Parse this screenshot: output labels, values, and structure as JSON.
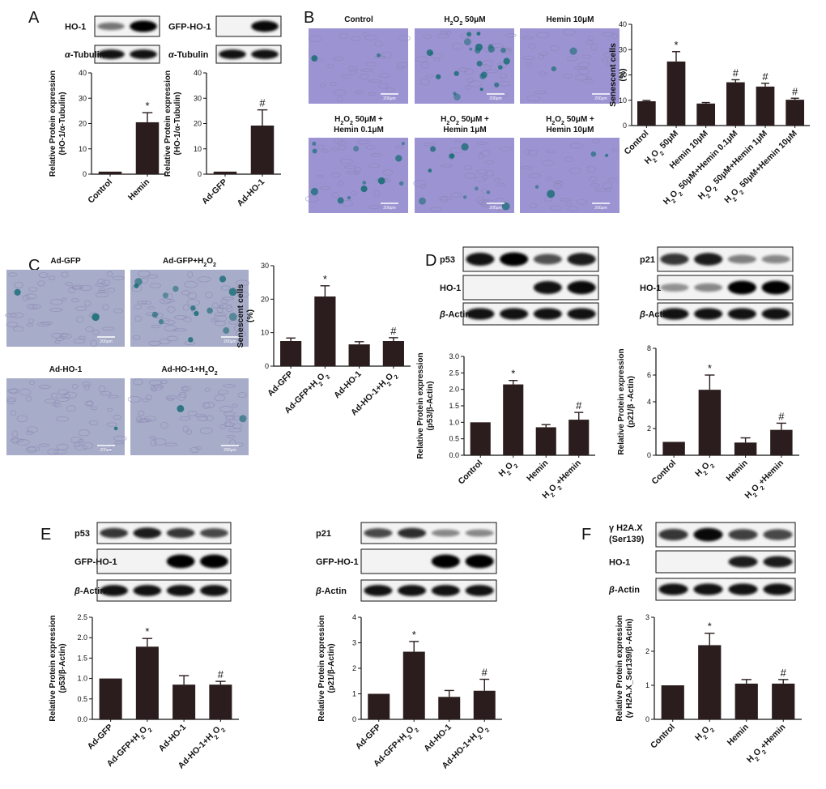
{
  "panel_labels": [
    "A",
    "B",
    "C",
    "D",
    "E",
    "F"
  ],
  "blots": {
    "A_left": [
      "HO-1",
      "α-Tubulin"
    ],
    "A_right": [
      "GFP-HO-1",
      "α-Tubulin"
    ],
    "D_left": [
      "p53",
      "HO-1",
      "β-Actin"
    ],
    "D_right": [
      "p21",
      "HO-1",
      "β-Actin"
    ],
    "E_left": [
      "p53",
      "GFP-HO-1",
      "β-Actin"
    ],
    "E_right": [
      "p21",
      "GFP-HO-1",
      "β-Actin"
    ],
    "F": [
      "γ H2A.X (Ser139)",
      "HO-1",
      "β-Actin"
    ]
  },
  "micrographs": {
    "B": [
      "Control",
      "H2O2 50μM",
      "Hemin 10μM",
      "H2O2 50μM + Hemin 0.1μM",
      "H2O2 50μM + Hemin 1μM",
      "H2O2 50μM + Hemin 10μM"
    ],
    "C": [
      "Ad-GFP",
      "Ad-GFP+H2O2",
      "Ad-HO-1",
      "Ad-HO-1+H2O2"
    ],
    "B_scale": "200μm",
    "C_scale": "200μm"
  },
  "chart_data": [
    {
      "id": "A1",
      "type": "bar",
      "categories": [
        "Control",
        "Hemin"
      ],
      "values": [
        1,
        20.5
      ],
      "errors": [
        0,
        3.8
      ],
      "ylabel": "Relative Protein expression (HO-1/α-Tubulin)",
      "ylim": [
        0,
        40
      ],
      "yticks": [
        0,
        10,
        20,
        30,
        40
      ],
      "annotations": [
        "",
        "*"
      ]
    },
    {
      "id": "A2",
      "type": "bar",
      "categories": [
        "Ad-GFP",
        "Ad-HO-1"
      ],
      "values": [
        1,
        19.2
      ],
      "errors": [
        0,
        6.2
      ],
      "ylabel": "Relative Protein expression (HO-1/α-Tubulin)",
      "ylim": [
        0,
        40
      ],
      "yticks": [
        0,
        10,
        20,
        30,
        40
      ],
      "annotations": [
        "",
        "#"
      ]
    },
    {
      "id": "B",
      "type": "bar",
      "categories": [
        "Control",
        "H2O2 50μM",
        "Hemin 10μM",
        "H2O2 50μM+Hemin 0.1μM",
        "H2O2 50μM+Hemin 1μM",
        "H2O2 50μM+Hemin 10μM"
      ],
      "values": [
        9.6,
        25.3,
        8.7,
        17.1,
        15.4,
        10.2
      ],
      "errors": [
        0.3,
        3.9,
        0.4,
        1.0,
        1.3,
        0.6
      ],
      "ylabel": "Senescent cells (%)",
      "ylim": [
        0,
        40
      ],
      "yticks": [
        0,
        10,
        20,
        30,
        40
      ],
      "annotations": [
        "",
        "*",
        "",
        "#",
        "#",
        "#"
      ]
    },
    {
      "id": "C",
      "type": "bar",
      "categories": [
        "Ad-GFP",
        "Ad-GFP+H2O2",
        "Ad-HO-1",
        "Ad-HO-1+H2O2"
      ],
      "values": [
        7.5,
        20.8,
        6.5,
        7.5
      ],
      "errors": [
        0.9,
        3.2,
        0.8,
        1.0
      ],
      "ylabel": "Senescent cells (%)",
      "ylim": [
        0,
        30
      ],
      "yticks": [
        0,
        10,
        20,
        30
      ],
      "annotations": [
        "",
        "*",
        "",
        "#"
      ]
    },
    {
      "id": "D1",
      "type": "bar",
      "categories": [
        "Control",
        "H2O2",
        "Hemin",
        "H2O2+Hemin"
      ],
      "values": [
        1.0,
        2.15,
        0.85,
        1.08
      ],
      "errors": [
        0,
        0.12,
        0.08,
        0.22
      ],
      "ylabel": "Relative Protein expression (p53/β-Actin)",
      "ylim": [
        0,
        3.0
      ],
      "yticks": [
        0.0,
        0.5,
        1.0,
        1.5,
        2.0,
        2.5,
        3.0
      ],
      "annotations": [
        "",
        "*",
        "",
        "#"
      ]
    },
    {
      "id": "D2",
      "type": "bar",
      "categories": [
        "Control",
        "H2O2",
        "Hemin",
        "H2O2+Hemin"
      ],
      "values": [
        1.0,
        4.9,
        0.95,
        1.9
      ],
      "errors": [
        0,
        1.1,
        0.35,
        0.5
      ],
      "ylabel": "Relative Protein expression (p21/β -Actin)",
      "ylim": [
        0,
        8
      ],
      "yticks": [
        0,
        2,
        4,
        6,
        8
      ],
      "annotations": [
        "",
        "*",
        "",
        "#"
      ]
    },
    {
      "id": "E1",
      "type": "bar",
      "categories": [
        "Ad-GFP",
        "Ad-GFP+H2O2",
        "Ad-HO-1",
        "Ad-HO-1+H2O2"
      ],
      "values": [
        1.0,
        1.78,
        0.85,
        0.85
      ],
      "errors": [
        0,
        0.2,
        0.22,
        0.08
      ],
      "ylabel": "Relative Protein expression (p53/β-Actin)",
      "ylim": [
        0,
        2.5
      ],
      "yticks": [
        0.0,
        0.5,
        1.0,
        1.5,
        2.0,
        2.5
      ],
      "annotations": [
        "",
        "*",
        "",
        "#"
      ]
    },
    {
      "id": "E2",
      "type": "bar",
      "categories": [
        "Ad-GFP",
        "Ad-GFP+H2O2",
        "Ad-HO-1",
        "Ad-HO-1+H2O2"
      ],
      "values": [
        1.0,
        2.65,
        0.88,
        1.12
      ],
      "errors": [
        0,
        0.4,
        0.25,
        0.45
      ],
      "ylabel": "Relative Protein expression (p21/β-Actin)",
      "ylim": [
        0,
        4
      ],
      "yticks": [
        0,
        1,
        2,
        3,
        4
      ],
      "annotations": [
        "",
        "*",
        "",
        "#"
      ]
    },
    {
      "id": "F",
      "type": "bar",
      "categories": [
        "Control",
        "H2O2",
        "Hemin",
        "H2O2+Hemin"
      ],
      "values": [
        1.0,
        2.18,
        1.05,
        1.05
      ],
      "errors": [
        0,
        0.35,
        0.12,
        0.12
      ],
      "ylabel": "Relative Protein expression (γ H2A.X_Ser139/β -Actin)",
      "ylim": [
        0,
        3
      ],
      "yticks": [
        0,
        1,
        2,
        3
      ],
      "annotations": [
        "",
        "*",
        "",
        "#"
      ]
    }
  ]
}
